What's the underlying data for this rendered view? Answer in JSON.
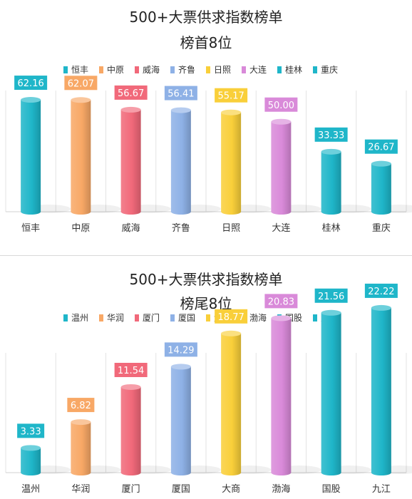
{
  "chart_data": [
    {
      "type": "bar",
      "title": "500+大票供求指数榜单",
      "subtitle": "榜首8位",
      "categories": [
        "恒丰",
        "中原",
        "威海",
        "齐鲁",
        "日照",
        "大连",
        "桂林",
        "重庆"
      ],
      "values": [
        62.16,
        62.07,
        56.67,
        56.41,
        55.17,
        50.0,
        33.33,
        26.67
      ],
      "value_labels": [
        "62.16",
        "62.07",
        "56.67",
        "56.41",
        "55.17",
        "50.00",
        "33.33",
        "26.67"
      ],
      "legend_position": "top",
      "colors": [
        "#1fb6c9",
        "#f8a866",
        "#f1697a",
        "#8eb1e6",
        "#f9cf3a",
        "#d98ad9",
        "#1fb6c9",
        "#1fb6c9"
      ],
      "grid": "vertical-category-lines",
      "ylim": [
        0,
        80
      ]
    },
    {
      "type": "bar",
      "title": "500+大票供求指数榜单",
      "subtitle": "榜尾8位",
      "categories": [
        "温州",
        "华润",
        "厦门",
        "厦国",
        "大商",
        "渤海",
        "国股",
        "九江"
      ],
      "values": [
        3.33,
        6.82,
        11.54,
        14.29,
        18.77,
        20.83,
        21.56,
        22.22
      ],
      "value_labels": [
        "3.33",
        "6.82",
        "11.54",
        "14.29",
        "18.77",
        "20.83",
        "21.56",
        "22.22"
      ],
      "legend_position": "top",
      "colors": [
        "#1fb6c9",
        "#f8a866",
        "#f1697a",
        "#8eb1e6",
        "#f9cf3a",
        "#d98ad9",
        "#1fb6c9",
        "#1fb6c9"
      ],
      "grid": "vertical-category-lines",
      "ylim": [
        0,
        25
      ]
    }
  ]
}
